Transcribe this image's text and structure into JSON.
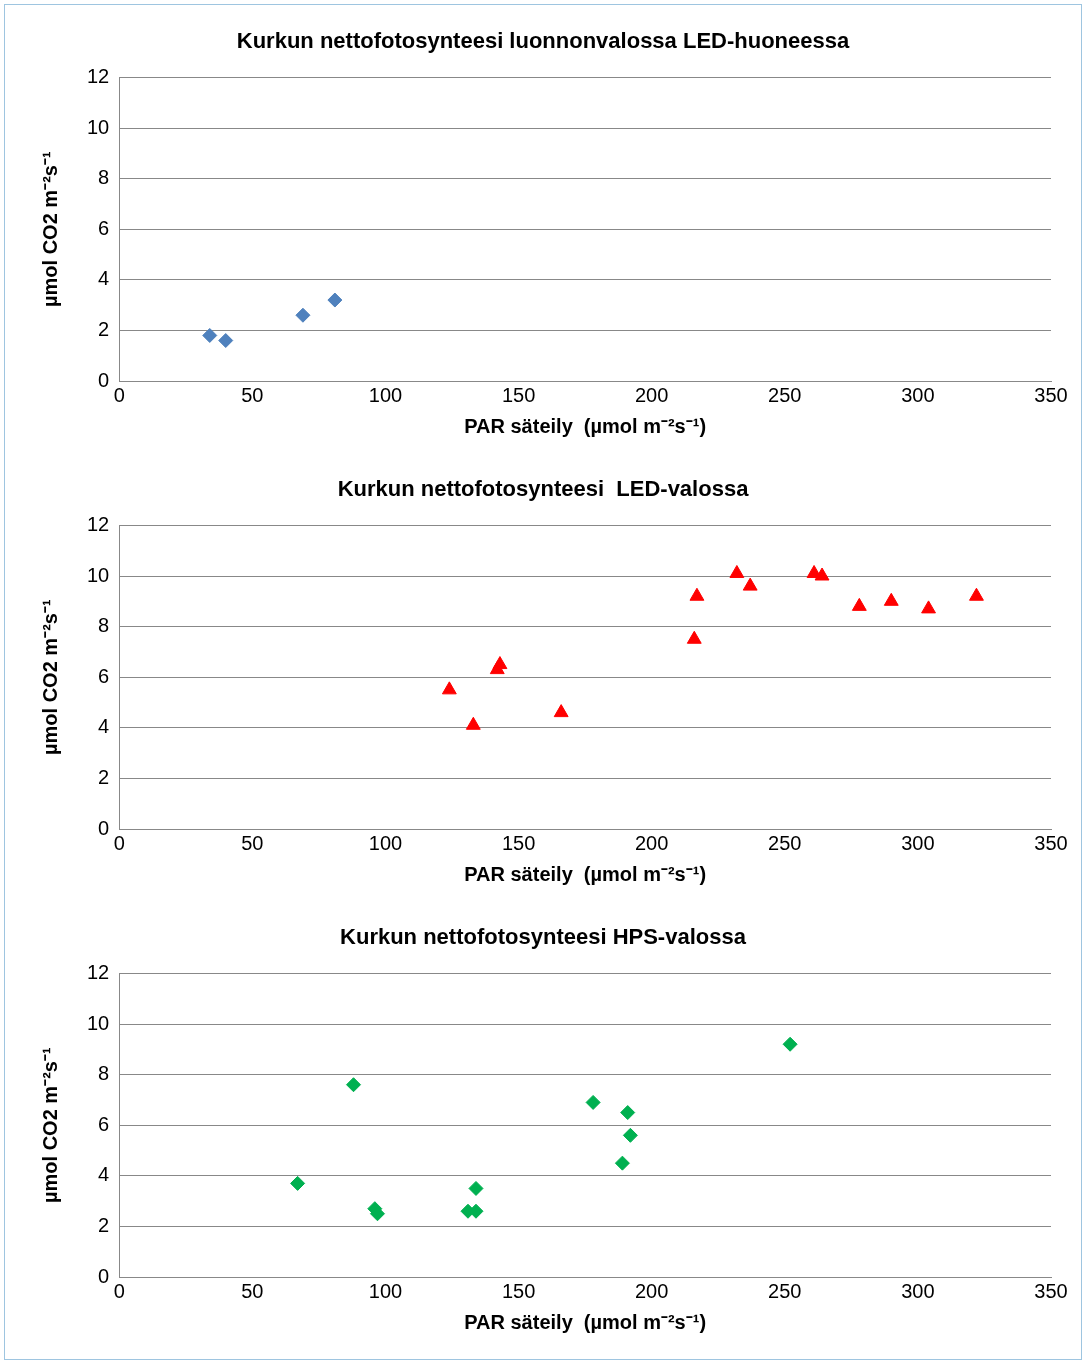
{
  "chart_data": [
    {
      "type": "scatter",
      "title": "Kurkun nettofotosynteesi luonnonvalossa LED-huoneessa",
      "xlabel": "PAR säteily  (µmol m⁻²s⁻¹)",
      "ylabel": "µmol CO2 m⁻²s⁻¹",
      "x": [
        34,
        40,
        69,
        81
      ],
      "values": [
        1.8,
        1.6,
        2.6,
        3.2
      ],
      "color": "#4f81bd",
      "marker": "diamond",
      "xlim": [
        0,
        350
      ],
      "xticks": [
        0,
        50,
        100,
        150,
        200,
        250,
        300,
        350
      ],
      "ylim": [
        0,
        12
      ],
      "yticks": [
        0,
        2,
        4,
        6,
        8,
        10,
        12
      ],
      "grid": "y",
      "legend": false
    },
    {
      "type": "scatter",
      "title": "Kurkun nettofotosynteesi  LED-valossa",
      "xlabel": "PAR säteily  (µmol m⁻²s⁻¹)",
      "ylabel": "µmol CO2 m⁻²s⁻¹",
      "x": [
        124,
        133,
        142,
        143,
        166,
        216,
        217,
        232,
        237,
        261,
        264,
        278,
        290,
        304,
        322
      ],
      "values": [
        5.5,
        4.1,
        6.3,
        6.5,
        4.6,
        7.5,
        9.2,
        10.1,
        9.6,
        10.1,
        10.0,
        8.8,
        9.0,
        8.7,
        9.2
      ],
      "color": "#ff0000",
      "marker": "triangle",
      "xlim": [
        0,
        350
      ],
      "xticks": [
        0,
        50,
        100,
        150,
        200,
        250,
        300,
        350
      ],
      "ylim": [
        0,
        12
      ],
      "yticks": [
        0,
        2,
        4,
        6,
        8,
        10,
        12
      ],
      "grid": "y",
      "legend": false
    },
    {
      "type": "scatter",
      "title": "Kurkun nettofotosynteesi HPS-valossa",
      "xlabel": "PAR säteily  (µmol m⁻²s⁻¹)",
      "ylabel": "µmol CO2 m⁻²s⁻¹",
      "x": [
        67,
        88,
        96,
        97,
        131,
        134,
        134,
        178,
        191,
        192,
        189,
        252
      ],
      "values": [
        3.7,
        7.6,
        2.7,
        2.5,
        2.6,
        2.6,
        3.5,
        6.9,
        6.5,
        5.6,
        4.5,
        9.2
      ],
      "color": "#00b050",
      "marker": "diamond",
      "xlim": [
        0,
        350
      ],
      "xticks": [
        0,
        50,
        100,
        150,
        200,
        250,
        300,
        350
      ],
      "ylim": [
        0,
        12
      ],
      "yticks": [
        0,
        2,
        4,
        6,
        8,
        10,
        12
      ],
      "grid": "y",
      "legend": false
    }
  ]
}
